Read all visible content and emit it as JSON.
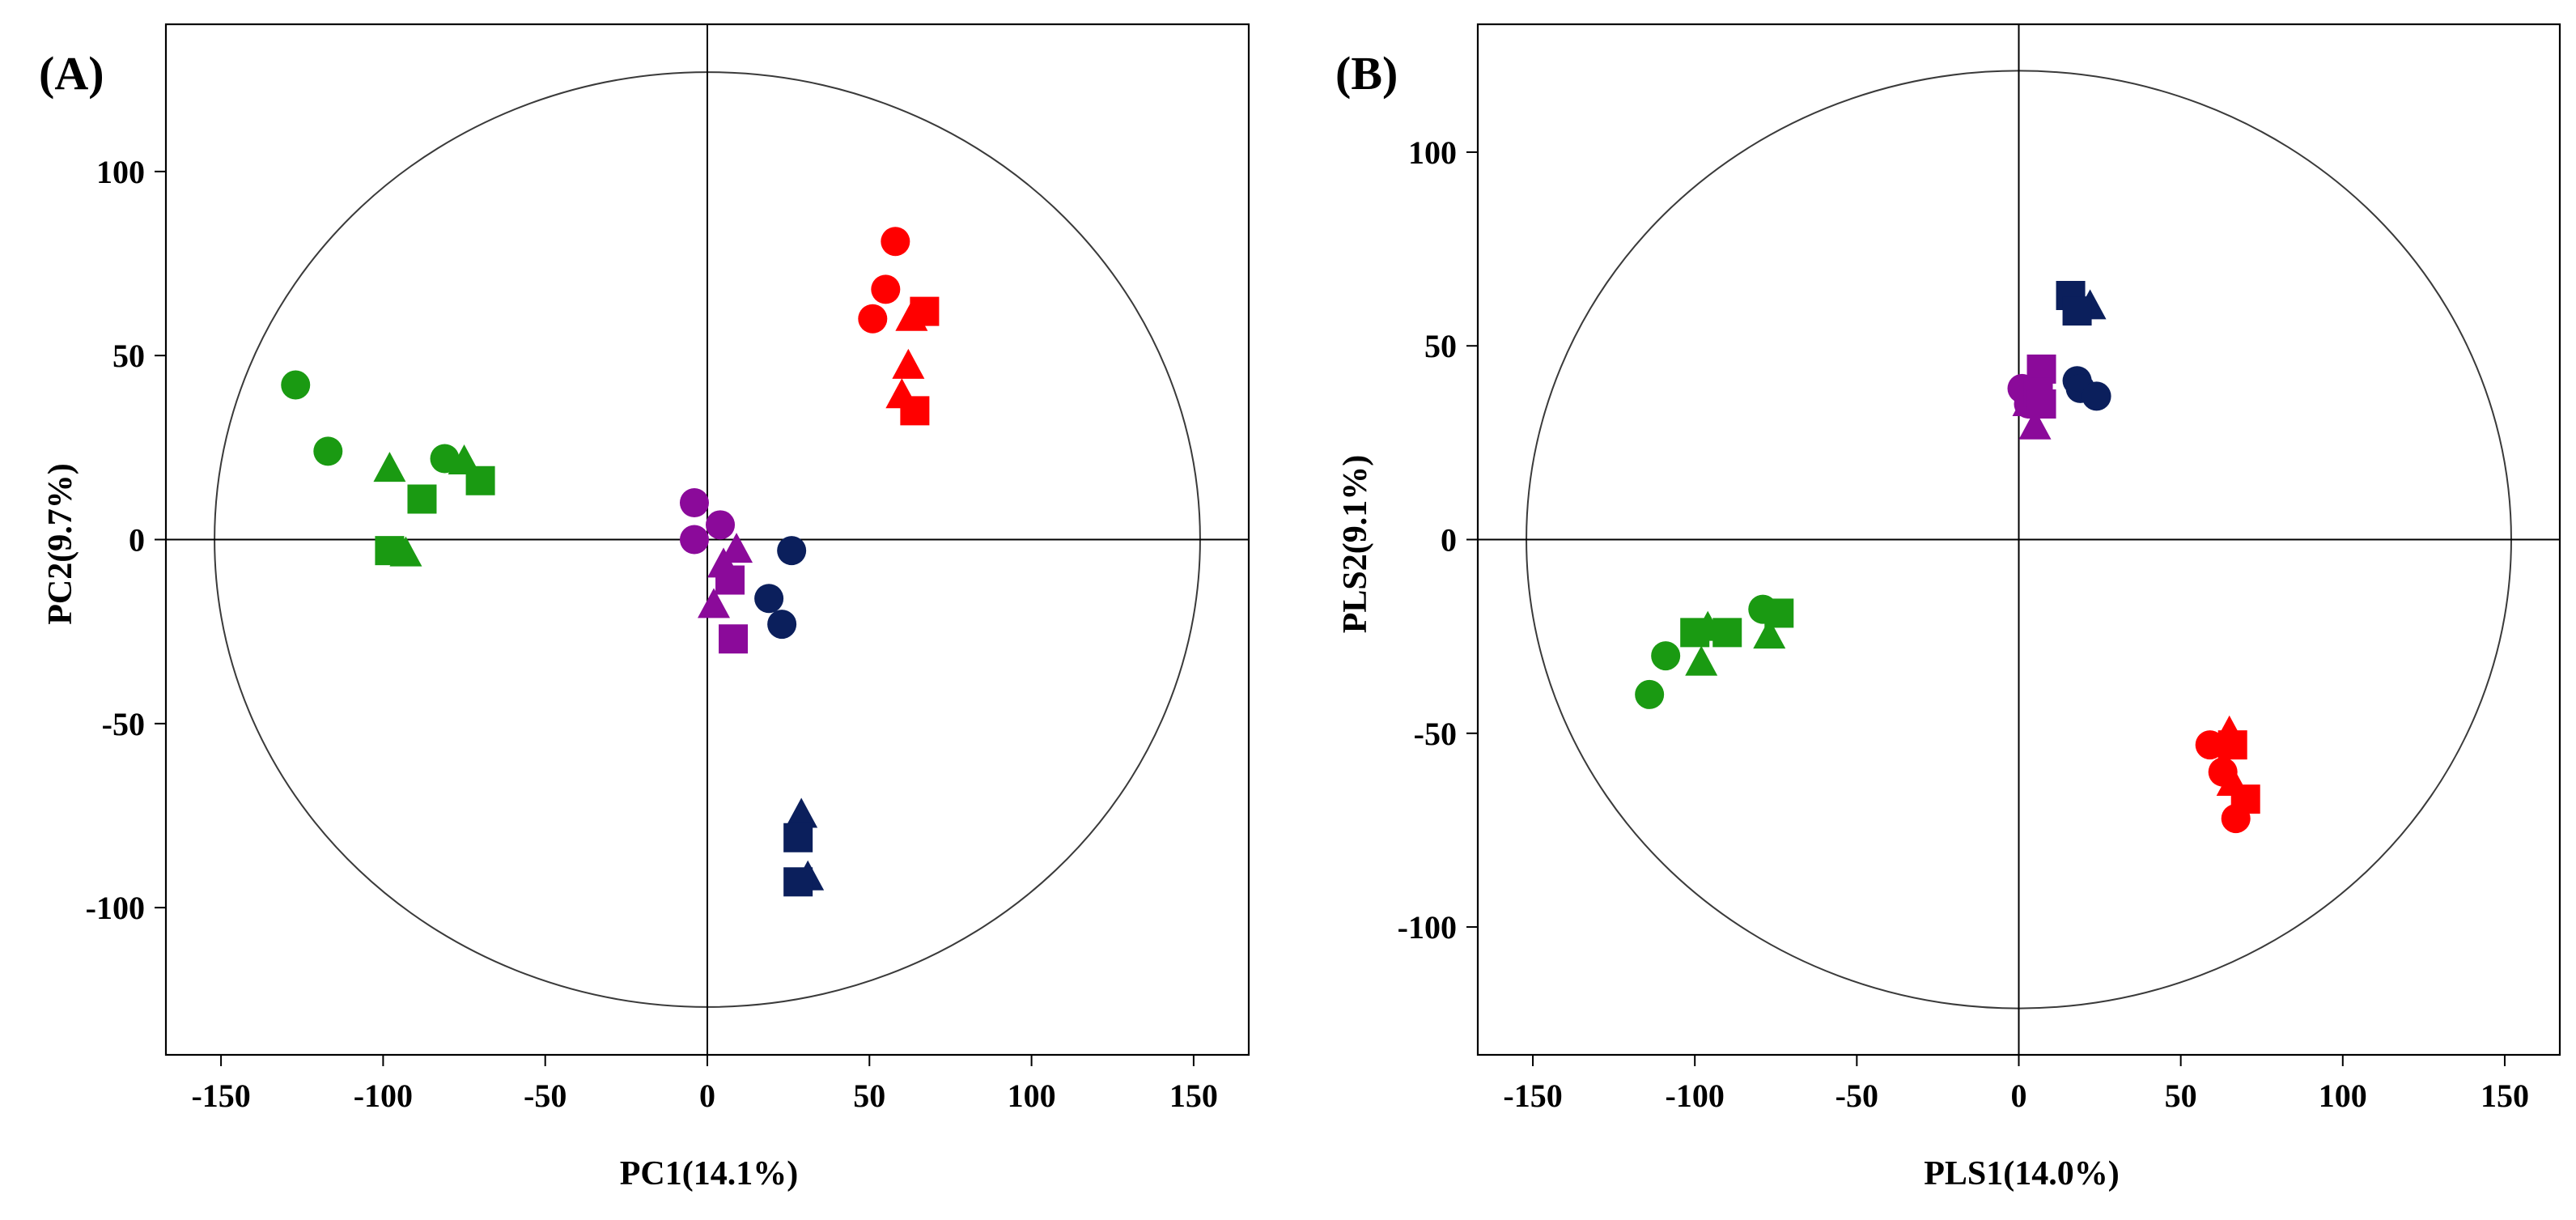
{
  "chart_data": [
    {
      "type": "scatter",
      "panel_label": "(A)",
      "xlabel": "PC1(14.1%)",
      "ylabel": "PC2(9.7%)",
      "xlim": [
        -167,
        167
      ],
      "ylim": [
        -140,
        140
      ],
      "xticks": [
        -150,
        -100,
        -50,
        0,
        50,
        100,
        150
      ],
      "yticks": [
        -100,
        -50,
        0,
        50,
        100
      ],
      "xtick_labels": [
        "-150",
        "-100",
        "-50",
        "0",
        "50",
        "100",
        "150"
      ],
      "ytick_labels": [
        "-100",
        "-50",
        "0",
        "50",
        "100"
      ],
      "reference_ellipse": {
        "rx": 152,
        "ry": 127
      },
      "series": [
        {
          "name": "green",
          "color": "#1a9a12",
          "points": [
            {
              "x": -127,
              "y": 42,
              "shape": "circle"
            },
            {
              "x": -117,
              "y": 24,
              "shape": "circle"
            },
            {
              "x": -81,
              "y": 22,
              "shape": "circle"
            },
            {
              "x": -98,
              "y": 19,
              "shape": "triangle"
            },
            {
              "x": -93,
              "y": -4,
              "shape": "triangle"
            },
            {
              "x": -75,
              "y": 21,
              "shape": "triangle"
            },
            {
              "x": -88,
              "y": 11,
              "shape": "square"
            },
            {
              "x": -98,
              "y": -3,
              "shape": "square"
            },
            {
              "x": -70,
              "y": 16,
              "shape": "square"
            }
          ]
        },
        {
          "name": "red",
          "color": "#ff0000",
          "points": [
            {
              "x": 58,
              "y": 81,
              "shape": "circle"
            },
            {
              "x": 55,
              "y": 68,
              "shape": "circle"
            },
            {
              "x": 51,
              "y": 60,
              "shape": "circle"
            },
            {
              "x": 63,
              "y": 60,
              "shape": "triangle"
            },
            {
              "x": 62,
              "y": 47,
              "shape": "triangle"
            },
            {
              "x": 60,
              "y": 39,
              "shape": "triangle"
            },
            {
              "x": 67,
              "y": 62,
              "shape": "square"
            },
            {
              "x": 64,
              "y": 35,
              "shape": "square"
            }
          ]
        },
        {
          "name": "purple",
          "color": "#8b0a9a",
          "points": [
            {
              "x": -4,
              "y": 10,
              "shape": "circle"
            },
            {
              "x": 4,
              "y": 4,
              "shape": "circle"
            },
            {
              "x": -4,
              "y": 0,
              "shape": "circle"
            },
            {
              "x": 9,
              "y": -3,
              "shape": "triangle"
            },
            {
              "x": 5,
              "y": -7,
              "shape": "triangle"
            },
            {
              "x": 2,
              "y": -18,
              "shape": "triangle"
            },
            {
              "x": 7,
              "y": -11,
              "shape": "square"
            },
            {
              "x": 8,
              "y": -27,
              "shape": "square"
            }
          ]
        },
        {
          "name": "navy",
          "color": "#0b1f5c",
          "points": [
            {
              "x": 26,
              "y": -3,
              "shape": "circle"
            },
            {
              "x": 19,
              "y": -16,
              "shape": "circle"
            },
            {
              "x": 23,
              "y": -23,
              "shape": "circle"
            },
            {
              "x": 29,
              "y": -75,
              "shape": "triangle"
            },
            {
              "x": 31,
              "y": -92,
              "shape": "triangle"
            },
            {
              "x": 28,
              "y": -81,
              "shape": "square"
            },
            {
              "x": 28,
              "y": -93,
              "shape": "square"
            }
          ]
        }
      ]
    },
    {
      "type": "scatter",
      "panel_label": "(B)",
      "xlabel": "PLS1(14.0%)",
      "ylabel": "PLS2(9.1%)",
      "xlim": [
        -167,
        167
      ],
      "ylim": [
        -133,
        133
      ],
      "xticks": [
        -150,
        -100,
        -50,
        0,
        50,
        100,
        150
      ],
      "yticks": [
        -100,
        -50,
        0,
        50,
        100
      ],
      "xtick_labels": [
        "-150",
        "-100",
        "-50",
        "0",
        "50",
        "100",
        "150"
      ],
      "ytick_labels": [
        "-100",
        "-50",
        "0",
        "50",
        "100"
      ],
      "reference_ellipse": {
        "rx": 152,
        "ry": 121
      },
      "series": [
        {
          "name": "green",
          "color": "#1a9a12",
          "points": [
            {
              "x": -114,
              "y": -40,
              "shape": "circle"
            },
            {
              "x": -109,
              "y": -30,
              "shape": "circle"
            },
            {
              "x": -79,
              "y": -18,
              "shape": "circle"
            },
            {
              "x": -98,
              "y": -32,
              "shape": "triangle"
            },
            {
              "x": -96,
              "y": -23,
              "shape": "triangle"
            },
            {
              "x": -77,
              "y": -25,
              "shape": "triangle"
            },
            {
              "x": -100,
              "y": -24,
              "shape": "square"
            },
            {
              "x": -90,
              "y": -24,
              "shape": "square"
            },
            {
              "x": -74,
              "y": -19,
              "shape": "square"
            }
          ]
        },
        {
          "name": "red",
          "color": "#ff0000",
          "points": [
            {
              "x": 59,
              "y": -53,
              "shape": "circle"
            },
            {
              "x": 63,
              "y": -60,
              "shape": "circle"
            },
            {
              "x": 67,
              "y": -72,
              "shape": "circle"
            },
            {
              "x": 65,
              "y": -50,
              "shape": "triangle"
            },
            {
              "x": 66,
              "y": -63,
              "shape": "triangle"
            },
            {
              "x": 66,
              "y": -53,
              "shape": "square"
            },
            {
              "x": 70,
              "y": -67,
              "shape": "square"
            }
          ]
        },
        {
          "name": "purple",
          "color": "#8b0a9a",
          "points": [
            {
              "x": 1,
              "y": 39,
              "shape": "circle"
            },
            {
              "x": 3,
              "y": 35,
              "shape": "circle"
            },
            {
              "x": 5,
              "y": 29,
              "shape": "triangle"
            },
            {
              "x": 3,
              "y": 35,
              "shape": "triangle"
            },
            {
              "x": 7,
              "y": 44,
              "shape": "square"
            },
            {
              "x": 6,
              "y": 38,
              "shape": "square"
            },
            {
              "x": 7,
              "y": 35,
              "shape": "square"
            }
          ]
        },
        {
          "name": "navy",
          "color": "#0b1f5c",
          "points": [
            {
              "x": 18,
              "y": 41,
              "shape": "circle"
            },
            {
              "x": 19,
              "y": 39,
              "shape": "circle"
            },
            {
              "x": 24,
              "y": 37,
              "shape": "circle"
            },
            {
              "x": 22,
              "y": 60,
              "shape": "triangle"
            },
            {
              "x": 16,
              "y": 63,
              "shape": "square"
            },
            {
              "x": 18,
              "y": 59,
              "shape": "square"
            }
          ]
        }
      ]
    }
  ]
}
